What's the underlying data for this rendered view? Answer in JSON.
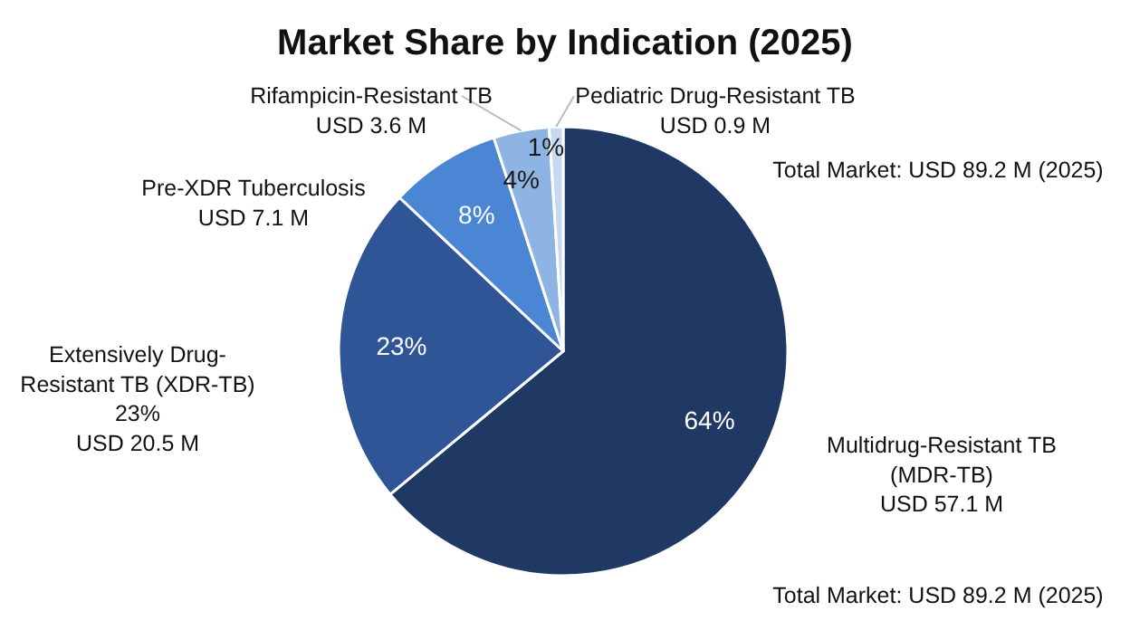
{
  "chart_data": {
    "type": "pie",
    "title": "Market Share by Indication (2025)",
    "categories": [
      "Multidrug-Resistant TB\n(MDR-TB)",
      "Extensively Drug-\nResistant TB (XDR-TB)",
      "Pre-XDR Tuberculosis",
      "Rifampicin-Resistant TB",
      "Pediatric Drug-Resistant TB"
    ],
    "values": [
      64,
      23,
      8,
      4,
      1
    ],
    "colors": [
      "#1f3864",
      "#2f5597",
      "#4a86d4",
      "#8eb4e3",
      "#c5d9f1"
    ],
    "value_labels": [
      "64%",
      "23%",
      "8%",
      "4%",
      "1%"
    ],
    "annotations": [
      "USD 57.1 M",
      "23%\nUSD 20.5 M",
      "USD 7.1 M",
      "USD 3.6 M",
      "USD 0.9 M",
      "Total Market: USD 89.2 M (2025)",
      "Total Market: USD 89.2 M (2025)"
    ],
    "legend": false
  }
}
